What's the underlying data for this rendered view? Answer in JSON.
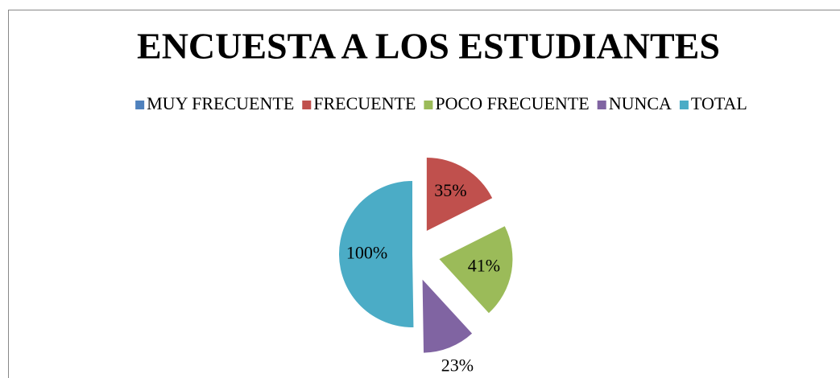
{
  "chart_data": {
    "type": "pie",
    "title": "ENCUESTA  A LOS ESTUDIANTES",
    "categories": [
      "MUY FRECUENTE",
      "FRECUENTE",
      "POCO FRECUENTE",
      "NUNCA",
      "TOTAL"
    ],
    "values": [
      0,
      35,
      41,
      23,
      100
    ],
    "value_labels": [
      null,
      "35%",
      "41%",
      "23%",
      "100%"
    ],
    "colors": [
      "#4F81BD",
      "#C0504D",
      "#9BBB59",
      "#8064A2",
      "#4BACC6"
    ],
    "legend": "top"
  }
}
